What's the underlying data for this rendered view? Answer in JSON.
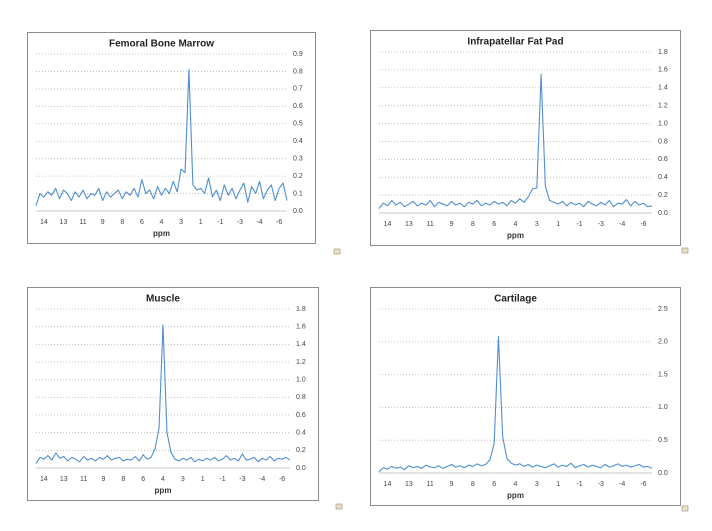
{
  "chart_data": [
    {
      "type": "line",
      "title": "Femoral Bone Marrow",
      "xlabel": "ppm",
      "color": "#4f8fd0",
      "grid": true,
      "categories": [
        null,
        null,
        "14",
        null,
        null,
        null,
        null,
        "13",
        null,
        null,
        null,
        null,
        "11",
        null,
        null,
        null,
        null,
        "9",
        null,
        null,
        null,
        null,
        "8",
        null,
        null,
        null,
        null,
        "6",
        null,
        null,
        null,
        null,
        "4",
        null,
        null,
        null,
        null,
        "3",
        null,
        null,
        null,
        null,
        "1",
        null,
        null,
        null,
        null,
        "-1",
        null,
        null,
        null,
        null,
        "-3",
        null,
        null,
        null,
        null,
        "-4",
        null,
        null,
        null,
        null,
        "-6",
        null,
        null
      ],
      "values": [
        0.03,
        0.1,
        0.08,
        0.11,
        0.09,
        0.13,
        0.07,
        0.12,
        0.1,
        0.06,
        0.11,
        0.08,
        0.12,
        0.07,
        0.1,
        0.09,
        0.13,
        0.06,
        0.11,
        0.08,
        0.1,
        0.12,
        0.07,
        0.11,
        0.09,
        0.13,
        0.08,
        0.18,
        0.1,
        0.12,
        0.07,
        0.14,
        0.09,
        0.13,
        0.1,
        0.17,
        0.11,
        0.24,
        0.22,
        0.81,
        0.15,
        0.12,
        0.13,
        0.1,
        0.19,
        0.08,
        0.12,
        0.06,
        0.15,
        0.09,
        0.13,
        0.07,
        0.12,
        0.16,
        0.05,
        0.14,
        0.1,
        0.17,
        0.07,
        0.12,
        0.15,
        0.06,
        0.13,
        0.16,
        0.06
      ],
      "ylim": [
        0,
        0.9
      ],
      "yticks": [
        {
          "value": 0,
          "label": "0.0"
        },
        0.1,
        0.2,
        0.3,
        0.4,
        0.5,
        0.6,
        0.7,
        0.8,
        0.9
      ]
    },
    {
      "type": "line",
      "title": "Infrapatellar Fat Pad",
      "xlabel": "ppm",
      "color": "#4f8fd0",
      "grid": true,
      "categories": [
        null,
        null,
        "14",
        null,
        null,
        null,
        null,
        "13",
        null,
        null,
        null,
        null,
        "11",
        null,
        null,
        null,
        null,
        "9",
        null,
        null,
        null,
        null,
        "8",
        null,
        null,
        null,
        null,
        "6",
        null,
        null,
        null,
        null,
        "4",
        null,
        null,
        null,
        null,
        "3",
        null,
        null,
        null,
        null,
        "1",
        null,
        null,
        null,
        null,
        "-1",
        null,
        null,
        null,
        null,
        "-3",
        null,
        null,
        null,
        null,
        "-4",
        null,
        null,
        null,
        null,
        "-6",
        null,
        null
      ],
      "values": [
        0.05,
        0.11,
        0.08,
        0.14,
        0.09,
        0.12,
        0.07,
        0.1,
        0.13,
        0.08,
        0.11,
        0.09,
        0.14,
        0.07,
        0.12,
        0.1,
        0.08,
        0.13,
        0.09,
        0.11,
        0.07,
        0.12,
        0.1,
        0.14,
        0.08,
        0.11,
        0.09,
        0.13,
        0.1,
        0.12,
        0.08,
        0.14,
        0.11,
        0.16,
        0.12,
        0.18,
        0.27,
        0.28,
        1.55,
        0.3,
        0.14,
        0.12,
        0.1,
        0.13,
        0.08,
        0.12,
        0.09,
        0.11,
        0.07,
        0.13,
        0.1,
        0.08,
        0.12,
        0.09,
        0.14,
        0.07,
        0.11,
        0.1,
        0.15,
        0.08,
        0.13,
        0.09,
        0.11,
        0.07,
        0.08
      ],
      "ylim": [
        0,
        1.8
      ],
      "yticks": [
        {
          "value": 0,
          "label": "0.0"
        },
        0.2,
        0.4,
        0.6,
        0.8,
        {
          "value": 1,
          "label": "1.0"
        },
        1.2,
        1.4,
        1.6,
        1.8
      ]
    },
    {
      "type": "line",
      "title": "Muscle",
      "xlabel": "ppm",
      "color": "#4f8fd0",
      "grid": true,
      "categories": [
        null,
        null,
        "14",
        null,
        null,
        null,
        null,
        "13",
        null,
        null,
        null,
        null,
        "11",
        null,
        null,
        null,
        null,
        "9",
        null,
        null,
        null,
        null,
        "8",
        null,
        null,
        null,
        null,
        "6",
        null,
        null,
        null,
        null,
        "4",
        null,
        null,
        null,
        null,
        "3",
        null,
        null,
        null,
        null,
        "1",
        null,
        null,
        null,
        null,
        "-1",
        null,
        null,
        null,
        null,
        "-3",
        null,
        null,
        null,
        null,
        "-4",
        null,
        null,
        null,
        null,
        "-6",
        null,
        null
      ],
      "values": [
        0.05,
        0.12,
        0.1,
        0.14,
        0.09,
        0.17,
        0.11,
        0.13,
        0.08,
        0.12,
        0.1,
        0.07,
        0.13,
        0.09,
        0.11,
        0.08,
        0.12,
        0.1,
        0.14,
        0.09,
        0.11,
        0.12,
        0.08,
        0.1,
        0.09,
        0.13,
        0.08,
        0.15,
        0.1,
        0.12,
        0.22,
        0.45,
        1.62,
        0.4,
        0.18,
        0.1,
        0.08,
        0.11,
        0.09,
        0.12,
        0.07,
        0.1,
        0.08,
        0.11,
        0.09,
        0.12,
        0.08,
        0.1,
        0.14,
        0.09,
        0.11,
        0.08,
        0.16,
        0.09,
        0.1,
        0.12,
        0.07,
        0.11,
        0.09,
        0.13,
        0.08,
        0.11,
        0.1,
        0.12,
        0.09
      ],
      "ylim": [
        0,
        1.8
      ],
      "yticks": [
        {
          "value": 0,
          "label": "0.0"
        },
        0.2,
        0.4,
        0.6,
        0.8,
        {
          "value": 1,
          "label": "1.0"
        },
        1.2,
        1.4,
        1.6,
        1.8
      ]
    },
    {
      "type": "line",
      "title": "Cartilage",
      "xlabel": "ppm",
      "color": "#4f8fd0",
      "grid": true,
      "categories": [
        null,
        null,
        "14",
        null,
        null,
        null,
        null,
        "13",
        null,
        null,
        null,
        null,
        "11",
        null,
        null,
        null,
        null,
        "9",
        null,
        null,
        null,
        null,
        "8",
        null,
        null,
        null,
        null,
        "6",
        null,
        null,
        null,
        null,
        "4",
        null,
        null,
        null,
        null,
        "3",
        null,
        null,
        null,
        null,
        "1",
        null,
        null,
        null,
        null,
        "-1",
        null,
        null,
        null,
        null,
        "-3",
        null,
        null,
        null,
        null,
        "-4",
        null,
        null,
        null,
        null,
        "-6",
        null,
        null
      ],
      "values": [
        0.02,
        0.08,
        0.06,
        0.1,
        0.07,
        0.09,
        0.05,
        0.11,
        0.08,
        0.1,
        0.07,
        0.12,
        0.09,
        0.08,
        0.11,
        0.07,
        0.1,
        0.13,
        0.09,
        0.11,
        0.08,
        0.12,
        0.1,
        0.14,
        0.11,
        0.13,
        0.2,
        0.45,
        2.08,
        0.55,
        0.22,
        0.15,
        0.12,
        0.14,
        0.1,
        0.13,
        0.09,
        0.12,
        0.1,
        0.08,
        0.11,
        0.14,
        0.09,
        0.12,
        0.1,
        0.15,
        0.08,
        0.11,
        0.13,
        0.09,
        0.12,
        0.1,
        0.08,
        0.13,
        0.09,
        0.11,
        0.14,
        0.1,
        0.12,
        0.09,
        0.11,
        0.13,
        0.09,
        0.1,
        0.07
      ],
      "ylim": [
        0,
        2.5
      ],
      "yticks": [
        {
          "value": 0,
          "label": "0.0"
        },
        0.5,
        {
          "value": 1,
          "label": "1.0"
        },
        1.5,
        {
          "value": 2,
          "label": "2.0"
        },
        2.5
      ]
    }
  ]
}
